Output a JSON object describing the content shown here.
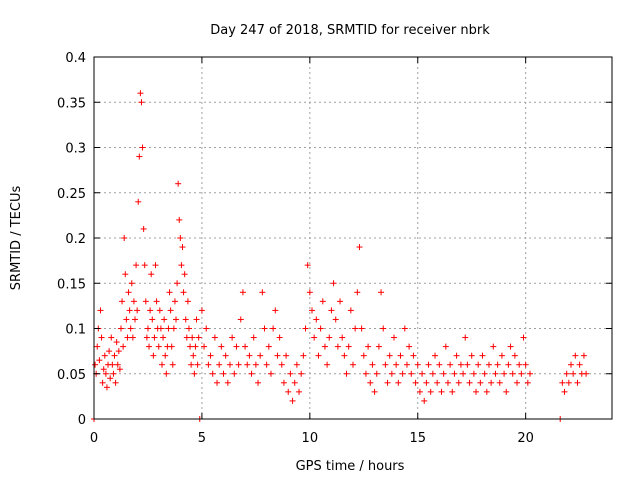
{
  "chart_data": {
    "type": "scatter",
    "title": "Day 247 of 2018, SRMTID for receiver nbrk",
    "xlabel": "GPS time / hours",
    "ylabel": "SRMTID / TECUs",
    "xlim": [
      0,
      24
    ],
    "ylim": [
      0,
      0.4
    ],
    "x_ticks": [
      0,
      5,
      10,
      15,
      20
    ],
    "x_tick_labels": [
      "0",
      "5",
      "10",
      "15",
      "20"
    ],
    "y_ticks": [
      0,
      0.05,
      0.1,
      0.15,
      0.2,
      0.25,
      0.3,
      0.35,
      0.4
    ],
    "y_tick_labels": [
      "0",
      "0.05",
      "0.1",
      "0.15",
      "0.2",
      "0.25",
      "0.3",
      "0.35",
      "0.4"
    ],
    "grid": true,
    "marker": "plus",
    "color": "#ff0000",
    "series": [
      {
        "name": "SRMTID",
        "points": [
          [
            0.0,
            0.0
          ],
          [
            0.05,
            0.06
          ],
          [
            0.1,
            0.05
          ],
          [
            0.15,
            0.08
          ],
          [
            0.2,
            0.1
          ],
          [
            0.25,
            0.065
          ],
          [
            0.3,
            0.12
          ],
          [
            0.35,
            0.09
          ],
          [
            0.4,
            0.04
          ],
          [
            0.45,
            0.055
          ],
          [
            0.5,
            0.07
          ],
          [
            0.55,
            0.05
          ],
          [
            0.6,
            0.035
          ],
          [
            0.65,
            0.06
          ],
          [
            0.7,
            0.075
          ],
          [
            0.75,
            0.045
          ],
          [
            0.8,
            0.09
          ],
          [
            0.85,
            0.06
          ],
          [
            0.9,
            0.05
          ],
          [
            0.95,
            0.07
          ],
          [
            1.0,
            0.04
          ],
          [
            1.05,
            0.085
          ],
          [
            1.1,
            0.06
          ],
          [
            1.15,
            0.075
          ],
          [
            1.2,
            0.055
          ],
          [
            1.25,
            0.1
          ],
          [
            1.3,
            0.13
          ],
          [
            1.35,
            0.08
          ],
          [
            1.4,
            0.2
          ],
          [
            1.45,
            0.16
          ],
          [
            1.5,
            0.11
          ],
          [
            1.55,
            0.09
          ],
          [
            1.6,
            0.14
          ],
          [
            1.65,
            0.12
          ],
          [
            1.7,
            0.1
          ],
          [
            1.75,
            0.15
          ],
          [
            1.8,
            0.09
          ],
          [
            1.85,
            0.13
          ],
          [
            1.9,
            0.11
          ],
          [
            1.95,
            0.17
          ],
          [
            2.0,
            0.12
          ],
          [
            2.05,
            0.24
          ],
          [
            2.1,
            0.29
          ],
          [
            2.15,
            0.36
          ],
          [
            2.2,
            0.35
          ],
          [
            2.25,
            0.3
          ],
          [
            2.3,
            0.21
          ],
          [
            2.35,
            0.17
          ],
          [
            2.4,
            0.13
          ],
          [
            2.45,
            0.09
          ],
          [
            2.5,
            0.1
          ],
          [
            2.55,
            0.08
          ],
          [
            2.6,
            0.12
          ],
          [
            2.65,
            0.16
          ],
          [
            2.7,
            0.11
          ],
          [
            2.75,
            0.07
          ],
          [
            2.8,
            0.09
          ],
          [
            2.85,
            0.17
          ],
          [
            2.9,
            0.13
          ],
          [
            2.95,
            0.1
          ],
          [
            3.0,
            0.08
          ],
          [
            3.05,
            0.12
          ],
          [
            3.1,
            0.1
          ],
          [
            3.15,
            0.06
          ],
          [
            3.2,
            0.09
          ],
          [
            3.25,
            0.11
          ],
          [
            3.3,
            0.07
          ],
          [
            3.35,
            0.05
          ],
          [
            3.4,
            0.08
          ],
          [
            3.45,
            0.1
          ],
          [
            3.5,
            0.14
          ],
          [
            3.55,
            0.12
          ],
          [
            3.6,
            0.08
          ],
          [
            3.65,
            0.06
          ],
          [
            3.7,
            0.1
          ],
          [
            3.75,
            0.13
          ],
          [
            3.8,
            0.11
          ],
          [
            3.85,
            0.15
          ],
          [
            3.9,
            0.26
          ],
          [
            3.95,
            0.22
          ],
          [
            4.0,
            0.2
          ],
          [
            4.05,
            0.17
          ],
          [
            4.1,
            0.19
          ],
          [
            4.15,
            0.14
          ],
          [
            4.2,
            0.16
          ],
          [
            4.25,
            0.11
          ],
          [
            4.3,
            0.09
          ],
          [
            4.35,
            0.13
          ],
          [
            4.4,
            0.1
          ],
          [
            4.45,
            0.08
          ],
          [
            4.5,
            0.06
          ],
          [
            4.55,
            0.09
          ],
          [
            4.6,
            0.07
          ],
          [
            4.65,
            0.05
          ],
          [
            4.7,
            0.08
          ],
          [
            4.75,
            0.11
          ],
          [
            4.8,
            0.06
          ],
          [
            4.85,
            0.09
          ],
          [
            4.9,
            0.0
          ],
          [
            5.0,
            0.12
          ],
          [
            5.1,
            0.08
          ],
          [
            5.2,
            0.1
          ],
          [
            5.3,
            0.06
          ],
          [
            5.4,
            0.07
          ],
          [
            5.5,
            0.05
          ],
          [
            5.6,
            0.09
          ],
          [
            5.7,
            0.04
          ],
          [
            5.8,
            0.06
          ],
          [
            5.9,
            0.08
          ],
          [
            6.0,
            0.05
          ],
          [
            6.1,
            0.07
          ],
          [
            6.2,
            0.04
          ],
          [
            6.3,
            0.06
          ],
          [
            6.4,
            0.09
          ],
          [
            6.5,
            0.05
          ],
          [
            6.6,
            0.08
          ],
          [
            6.7,
            0.06
          ],
          [
            6.8,
            0.11
          ],
          [
            6.9,
            0.14
          ],
          [
            7.0,
            0.08
          ],
          [
            7.1,
            0.06
          ],
          [
            7.2,
            0.07
          ],
          [
            7.3,
            0.05
          ],
          [
            7.4,
            0.09
          ],
          [
            7.5,
            0.06
          ],
          [
            7.6,
            0.04
          ],
          [
            7.7,
            0.07
          ],
          [
            7.8,
            0.14
          ],
          [
            7.9,
            0.1
          ],
          [
            8.0,
            0.06
          ],
          [
            8.1,
            0.08
          ],
          [
            8.2,
            0.05
          ],
          [
            8.3,
            0.1
          ],
          [
            8.4,
            0.12
          ],
          [
            8.5,
            0.07
          ],
          [
            8.6,
            0.09
          ],
          [
            8.7,
            0.06
          ],
          [
            8.8,
            0.04
          ],
          [
            8.9,
            0.07
          ],
          [
            9.0,
            0.03
          ],
          [
            9.1,
            0.05
          ],
          [
            9.2,
            0.02
          ],
          [
            9.3,
            0.04
          ],
          [
            9.4,
            0.06
          ],
          [
            9.5,
            0.03
          ],
          [
            9.6,
            0.05
          ],
          [
            9.7,
            0.07
          ],
          [
            9.8,
            0.1
          ],
          [
            9.9,
            0.17
          ],
          [
            10.0,
            0.14
          ],
          [
            10.1,
            0.12
          ],
          [
            10.2,
            0.09
          ],
          [
            10.3,
            0.11
          ],
          [
            10.4,
            0.07
          ],
          [
            10.5,
            0.1
          ],
          [
            10.6,
            0.13
          ],
          [
            10.7,
            0.08
          ],
          [
            10.8,
            0.06
          ],
          [
            10.9,
            0.09
          ],
          [
            11.0,
            0.12
          ],
          [
            11.1,
            0.15
          ],
          [
            11.2,
            0.11
          ],
          [
            11.3,
            0.08
          ],
          [
            11.4,
            0.13
          ],
          [
            11.5,
            0.09
          ],
          [
            11.6,
            0.07
          ],
          [
            11.7,
            0.05
          ],
          [
            11.8,
            0.08
          ],
          [
            11.9,
            0.12
          ],
          [
            12.0,
            0.06
          ],
          [
            12.1,
            0.1
          ],
          [
            12.2,
            0.14
          ],
          [
            12.3,
            0.19
          ],
          [
            12.4,
            0.1
          ],
          [
            12.5,
            0.07
          ],
          [
            12.6,
            0.05
          ],
          [
            12.7,
            0.08
          ],
          [
            12.8,
            0.04
          ],
          [
            12.9,
            0.06
          ],
          [
            13.0,
            0.03
          ],
          [
            13.1,
            0.05
          ],
          [
            13.2,
            0.08
          ],
          [
            13.3,
            0.14
          ],
          [
            13.4,
            0.1
          ],
          [
            13.5,
            0.06
          ],
          [
            13.6,
            0.04
          ],
          [
            13.7,
            0.07
          ],
          [
            13.8,
            0.05
          ],
          [
            13.9,
            0.09
          ],
          [
            14.0,
            0.06
          ],
          [
            14.1,
            0.04
          ],
          [
            14.2,
            0.07
          ],
          [
            14.3,
            0.05
          ],
          [
            14.4,
            0.1
          ],
          [
            14.5,
            0.06
          ],
          [
            14.6,
            0.08
          ],
          [
            14.7,
            0.05
          ],
          [
            14.8,
            0.07
          ],
          [
            14.9,
            0.04
          ],
          [
            15.0,
            0.06
          ],
          [
            15.1,
            0.03
          ],
          [
            15.2,
            0.05
          ],
          [
            15.3,
            0.02
          ],
          [
            15.4,
            0.04
          ],
          [
            15.5,
            0.06
          ],
          [
            15.6,
            0.03
          ],
          [
            15.7,
            0.05
          ],
          [
            15.8,
            0.07
          ],
          [
            15.9,
            0.04
          ],
          [
            16.0,
            0.06
          ],
          [
            16.1,
            0.03
          ],
          [
            16.2,
            0.05
          ],
          [
            16.3,
            0.08
          ],
          [
            16.4,
            0.04
          ],
          [
            16.5,
            0.06
          ],
          [
            16.6,
            0.03
          ],
          [
            16.7,
            0.05
          ],
          [
            16.8,
            0.07
          ],
          [
            16.9,
            0.04
          ],
          [
            17.0,
            0.06
          ],
          [
            17.1,
            0.05
          ],
          [
            17.2,
            0.09
          ],
          [
            17.3,
            0.06
          ],
          [
            17.4,
            0.04
          ],
          [
            17.5,
            0.07
          ],
          [
            17.6,
            0.05
          ],
          [
            17.7,
            0.03
          ],
          [
            17.8,
            0.06
          ],
          [
            17.9,
            0.04
          ],
          [
            18.0,
            0.07
          ],
          [
            18.1,
            0.05
          ],
          [
            18.2,
            0.03
          ],
          [
            18.3,
            0.06
          ],
          [
            18.4,
            0.04
          ],
          [
            18.5,
            0.08
          ],
          [
            18.6,
            0.05
          ],
          [
            18.7,
            0.06
          ],
          [
            18.8,
            0.04
          ],
          [
            18.9,
            0.07
          ],
          [
            19.0,
            0.05
          ],
          [
            19.1,
            0.03
          ],
          [
            19.2,
            0.06
          ],
          [
            19.3,
            0.08
          ],
          [
            19.4,
            0.05
          ],
          [
            19.5,
            0.07
          ],
          [
            19.6,
            0.04
          ],
          [
            19.7,
            0.06
          ],
          [
            19.8,
            0.05
          ],
          [
            19.9,
            0.09
          ],
          [
            20.0,
            0.06
          ],
          [
            20.1,
            0.04
          ],
          [
            20.2,
            0.05
          ],
          [
            21.6,
            0.0
          ],
          [
            21.7,
            0.04
          ],
          [
            21.8,
            0.03
          ],
          [
            21.9,
            0.05
          ],
          [
            22.0,
            0.04
          ],
          [
            22.1,
            0.06
          ],
          [
            22.2,
            0.05
          ],
          [
            22.3,
            0.07
          ],
          [
            22.4,
            0.04
          ],
          [
            22.5,
            0.06
          ],
          [
            22.6,
            0.05
          ],
          [
            22.7,
            0.07
          ],
          [
            22.8,
            0.05
          ]
        ]
      }
    ]
  }
}
